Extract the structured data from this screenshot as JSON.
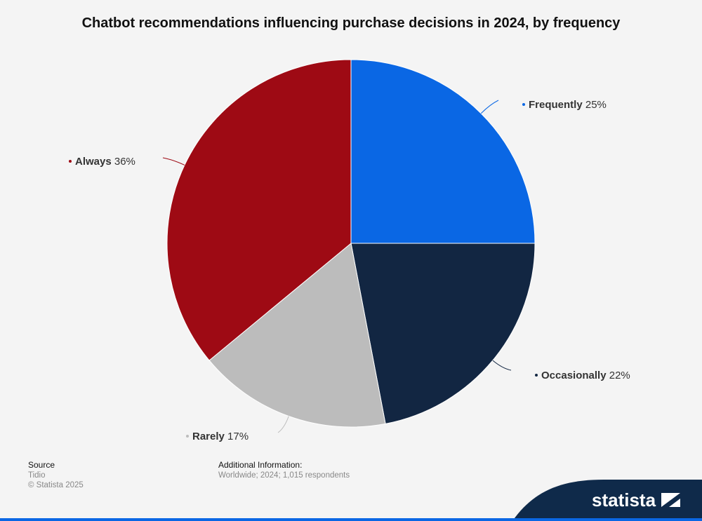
{
  "title": "Chatbot recommendations influencing purchase decisions in 2024, by frequency",
  "chart_data": {
    "type": "pie",
    "title": "Chatbot recommendations influencing purchase decisions in 2024, by frequency",
    "slices": [
      {
        "label": "Frequently",
        "value": 25,
        "color": "#0a67e4"
      },
      {
        "label": "Occasionally",
        "value": 22,
        "color": "#122642"
      },
      {
        "label": "Rarely",
        "value": 17,
        "color": "#bcbcbc"
      },
      {
        "label": "Always",
        "value": 36,
        "color": "#9e0a14"
      }
    ],
    "unit": "%"
  },
  "footer": {
    "source_heading": "Source",
    "source_name": "Tidio",
    "copyright": "© Statista 2025",
    "additional_heading": "Additional Information:",
    "additional_text": "Worldwide; 2024; 1,015 respondents"
  },
  "brand": {
    "name": "statista",
    "color": "#0f2a4a",
    "accent": "#0a67e4"
  }
}
